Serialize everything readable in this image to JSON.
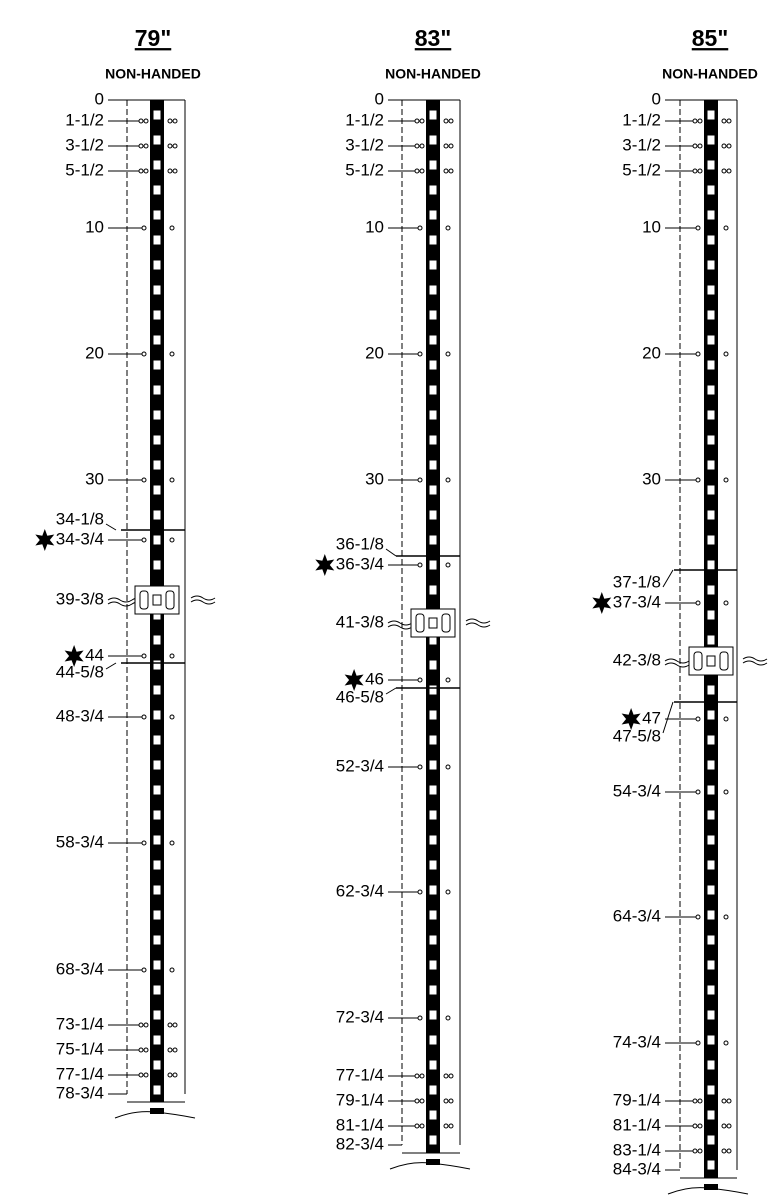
{
  "columns": [
    {
      "title": "79\"",
      "subtitle": "NON-HANDED",
      "marks": [
        "0",
        "1-1/2",
        "3-1/2",
        "5-1/2",
        "10",
        "20",
        "30",
        "34-1/8",
        "34-3/4",
        "39-3/8",
        "44",
        "44-5/8",
        "48-3/4",
        "58-3/4",
        "68-3/4",
        "73-1/4",
        "75-1/4",
        "77-1/4",
        "78-3/4"
      ]
    },
    {
      "title": "83\"",
      "subtitle": "NON-HANDED",
      "marks": [
        "0",
        "1-1/2",
        "3-1/2",
        "5-1/2",
        "10",
        "20",
        "30",
        "36-1/8",
        "36-3/4",
        "41-3/8",
        "46",
        "46-5/8",
        "52-3/4",
        "62-3/4",
        "72-3/4",
        "77-1/4",
        "79-1/4",
        "81-1/4",
        "82-3/4"
      ]
    },
    {
      "title": "85\"",
      "subtitle": "NON-HANDED",
      "marks": [
        "0",
        "1-1/2",
        "3-1/2",
        "5-1/2",
        "10",
        "20",
        "30",
        "37-1/8",
        "37-3/4",
        "42-3/8",
        "47",
        "47-5/8",
        "54-3/4",
        "64-3/4",
        "74-3/4",
        "79-1/4",
        "81-1/4",
        "83-1/4",
        "84-3/4"
      ]
    }
  ]
}
